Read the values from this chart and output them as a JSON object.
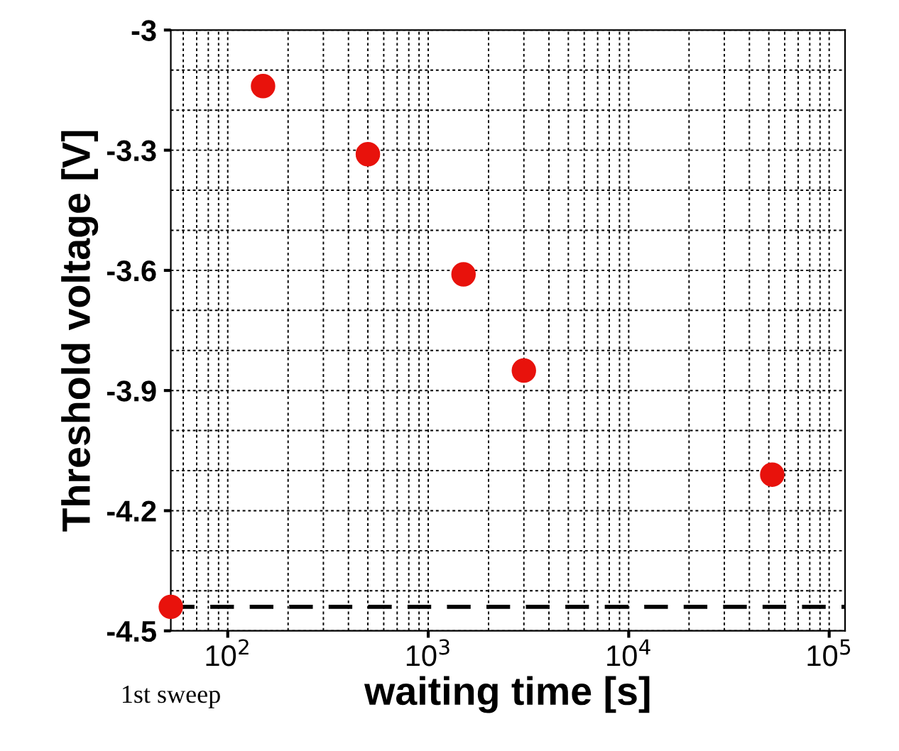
{
  "chart_data": {
    "type": "scatter",
    "xlabel": "waiting time [s]",
    "ylabel": "Threshold voltage [V]",
    "x": [
      52,
      150,
      500,
      1500,
      3000,
      52000
    ],
    "values": [
      -4.44,
      -3.14,
      -3.31,
      -3.61,
      -3.85,
      -4.11
    ],
    "color": "#e8120c",
    "marker": "circle",
    "log": "x",
    "xlim": [
      52,
      120000
    ],
    "ylim": [
      -4.5,
      -3
    ],
    "xticks": [
      {
        "value": 100,
        "label": "10$^{2}$"
      },
      {
        "value": 1000,
        "label": "10$^{3}$"
      },
      {
        "value": 10000,
        "label": "10$^{4}$"
      },
      {
        "value": 100000,
        "label": "10$^{5}$"
      }
    ],
    "yticks": [
      {
        "value": -4.5,
        "label": "-4.5"
      },
      {
        "value": -4.2,
        "label": "-4.2"
      },
      {
        "value": -3.9,
        "label": "-3.9"
      },
      {
        "value": -3.6,
        "label": "-3.6"
      },
      {
        "value": -3.3,
        "label": "-3.3"
      },
      {
        "value": -3,
        "label": "-3"
      }
    ],
    "grid": true,
    "ref_lines": [
      {
        "axis": "y",
        "value": -4.44,
        "color": "#000000",
        "line_style": "dashed"
      }
    ],
    "annotations": [
      "1st sweep"
    ]
  }
}
